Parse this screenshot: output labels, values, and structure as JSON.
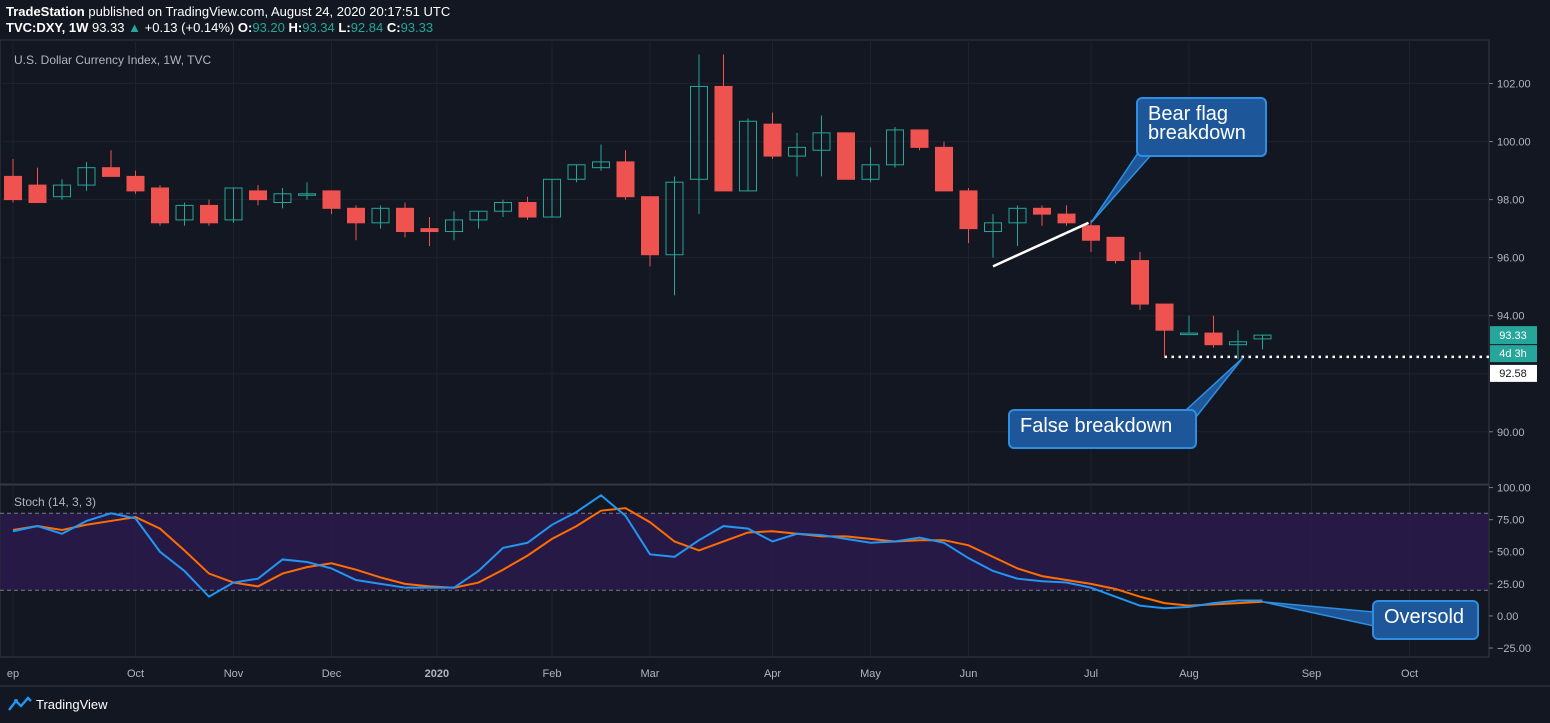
{
  "header": {
    "publisher": "TradeStation",
    "published_text": "published on TradingView.com, August 24, 2020 20:17:51 UTC",
    "symbol": "TVC:DXY, 1W",
    "last": "93.33",
    "change_arrow": "▲",
    "change": "+0.13 (+0.14%)",
    "o_label": "O:",
    "o": "93.20",
    "h_label": "H:",
    "h": "93.34",
    "l_label": "L:",
    "l": "92.84",
    "c_label": "C:",
    "c": "93.33"
  },
  "footer": {
    "brand": "TradingView",
    "logo_icon": "tradingview-logo-icon"
  },
  "colors": {
    "background": "#131722",
    "up": "#26a69a",
    "down": "#ef5350",
    "stoch_k": "#2196f3",
    "stoch_d": "#ff6d00",
    "band_fill": "#2a1a4a",
    "annotation_fill": "#1e5799",
    "annotation_border": "#2e8fe0"
  },
  "chart_data": {
    "type": "candlestick",
    "title": "U.S. Dollar Currency Index, 1W, TVC",
    "stoch_title": "Stoch (14, 3, 3)",
    "x_labels": [
      "ep",
      "Oct",
      "Nov",
      "Dec",
      "2020",
      "Feb",
      "Mar",
      "Apr",
      "May",
      "Jun",
      "Jul",
      "Aug",
      "Sep",
      "Oct"
    ],
    "x_label_week": [
      0,
      5,
      9,
      13,
      17.3,
      22,
      26,
      31,
      35,
      39,
      44,
      48,
      53,
      57
    ],
    "y_ticks": [
      "102.00",
      "100.00",
      "98.00",
      "96.00",
      "94.00",
      "90.00"
    ],
    "y_tick_values": [
      102,
      100,
      98,
      96,
      94,
      90
    ],
    "ylim": [
      88.2,
      103.5
    ],
    "stoch_ticks": [
      "100.00",
      "75.00",
      "50.00",
      "25.00",
      "0.00",
      "−25.00"
    ],
    "stoch_tick_values": [
      100,
      75,
      50,
      25,
      0,
      -25
    ],
    "stoch_ylim": [
      -32,
      102
    ],
    "stoch_bands": [
      80,
      20
    ],
    "last_price_label": "93.33",
    "countdown_label": "4d 3h",
    "low_line_label": "92.58",
    "low_line_value": 92.58,
    "ohlc": [
      [
        98.8,
        99.4,
        97.9,
        98.0
      ],
      [
        98.5,
        99.1,
        97.9,
        97.9
      ],
      [
        98.1,
        98.7,
        98.0,
        98.5
      ],
      [
        98.5,
        99.3,
        98.3,
        99.1
      ],
      [
        99.1,
        99.7,
        98.8,
        98.8
      ],
      [
        98.8,
        99.0,
        98.2,
        98.3
      ],
      [
        98.4,
        98.5,
        97.1,
        97.2
      ],
      [
        97.3,
        97.9,
        97.1,
        97.8
      ],
      [
        97.8,
        98.0,
        97.1,
        97.2
      ],
      [
        97.3,
        98.4,
        97.2,
        98.4
      ],
      [
        98.3,
        98.5,
        97.8,
        98.0
      ],
      [
        97.9,
        98.4,
        97.7,
        98.2
      ],
      [
        98.2,
        98.6,
        98.0,
        98.2
      ],
      [
        98.3,
        98.3,
        97.5,
        97.7
      ],
      [
        97.7,
        97.8,
        96.6,
        97.2
      ],
      [
        97.2,
        97.8,
        97.0,
        97.7
      ],
      [
        97.7,
        97.9,
        96.7,
        96.9
      ],
      [
        97.0,
        97.4,
        96.4,
        96.9
      ],
      [
        96.9,
        97.6,
        96.6,
        97.3
      ],
      [
        97.3,
        97.6,
        97.0,
        97.6
      ],
      [
        97.6,
        98.0,
        97.4,
        97.9
      ],
      [
        97.9,
        98.1,
        97.3,
        97.4
      ],
      [
        97.4,
        98.7,
        97.4,
        98.7
      ],
      [
        98.7,
        99.2,
        98.6,
        99.2
      ],
      [
        99.1,
        99.9,
        99.0,
        99.3
      ],
      [
        99.3,
        99.7,
        98.0,
        98.1
      ],
      [
        98.1,
        98.1,
        95.7,
        96.1
      ],
      [
        96.1,
        98.8,
        94.7,
        98.6
      ],
      [
        98.7,
        103.0,
        97.5,
        101.9
      ],
      [
        101.9,
        103.0,
        98.3,
        98.3
      ],
      [
        98.3,
        100.8,
        98.3,
        100.7
      ],
      [
        100.6,
        101.0,
        99.4,
        99.5
      ],
      [
        99.5,
        100.3,
        98.8,
        99.8
      ],
      [
        99.7,
        100.9,
        98.8,
        100.3
      ],
      [
        100.3,
        100.3,
        98.7,
        98.7
      ],
      [
        98.7,
        99.8,
        98.6,
        99.2
      ],
      [
        99.2,
        100.5,
        99.1,
        100.4
      ],
      [
        100.4,
        100.4,
        99.7,
        99.8
      ],
      [
        99.8,
        100.0,
        98.3,
        98.3
      ],
      [
        98.3,
        98.4,
        96.5,
        97.0
      ],
      [
        96.9,
        97.5,
        96.0,
        97.2
      ],
      [
        97.2,
        97.8,
        96.4,
        97.7
      ],
      [
        97.7,
        97.8,
        97.1,
        97.5
      ],
      [
        97.5,
        97.8,
        97.1,
        97.2
      ],
      [
        97.1,
        97.3,
        96.2,
        96.6
      ],
      [
        96.7,
        96.7,
        95.8,
        95.9
      ],
      [
        95.9,
        96.2,
        94.2,
        94.4
      ],
      [
        94.4,
        94.4,
        92.6,
        93.5
      ],
      [
        93.4,
        94.0,
        93.4,
        93.4
      ],
      [
        93.4,
        94.0,
        92.9,
        93.0
      ],
      [
        93.0,
        93.5,
        92.5,
        93.1
      ],
      [
        93.2,
        93.34,
        92.84,
        93.33
      ]
    ],
    "stoch_k": [
      66,
      70,
      64,
      74,
      80,
      76,
      50,
      35,
      15,
      26,
      29,
      44,
      42,
      37,
      28,
      25,
      22,
      22,
      22,
      35,
      53,
      57,
      71,
      81,
      94,
      78,
      48,
      46,
      59,
      70,
      68,
      58,
      64,
      63,
      60,
      57,
      58,
      61,
      57,
      45,
      35,
      29,
      27,
      26,
      22,
      15,
      8,
      6,
      7,
      10,
      12,
      12
    ],
    "stoch_d": [
      67,
      70,
      67,
      71,
      74,
      77,
      68,
      51,
      33,
      26,
      23,
      33,
      38,
      41,
      36,
      30,
      25,
      23,
      22,
      26,
      36,
      47,
      60,
      70,
      82,
      84,
      73,
      58,
      51,
      58,
      65,
      66,
      64,
      62,
      62,
      60,
      58,
      59,
      59,
      55,
      46,
      37,
      31,
      28,
      25,
      21,
      15,
      10,
      8,
      9,
      10,
      11
    ]
  },
  "annotations": {
    "bear_flag": "Bear flag\nbreakdown",
    "false_breakdown": "False breakdown",
    "oversold": "Oversold"
  }
}
